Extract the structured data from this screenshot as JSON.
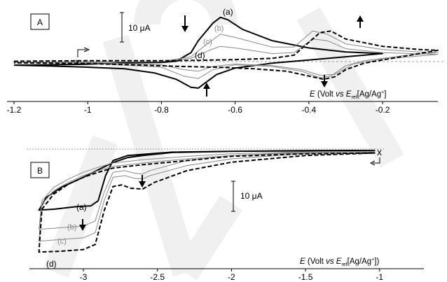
{
  "chart_data": [
    {
      "panel": "A",
      "type": "line",
      "xlabel": "E (Volt vs Eref[Ag/Ag+])",
      "xlim": [
        -1.2,
        -0.05
      ],
      "xticks": [
        "-1.2",
        "-1",
        "-0.8",
        "-0.6",
        "-0.4",
        "-0.2"
      ],
      "scale_bar": "10 µA",
      "start_marker": "x",
      "series": [
        {
          "label": "(a)",
          "style": "bold solid",
          "color": "#000000",
          "forward": [
            [
              -1.2,
              -0.22
            ],
            [
              -1.1,
              -0.2
            ],
            [
              -1.0,
              -0.16
            ],
            [
              -0.9,
              -0.08
            ],
            [
              -0.8,
              -0.05
            ],
            [
              -0.76,
              0.02
            ],
            [
              -0.72,
              0.55
            ],
            [
              -0.7,
              1.3
            ],
            [
              -0.66,
              2.4
            ],
            [
              -0.64,
              2.75
            ],
            [
              -0.62,
              2.6
            ],
            [
              -0.58,
              2.0
            ],
            [
              -0.5,
              1.3
            ],
            [
              -0.4,
              0.85
            ],
            [
              -0.3,
              0.6
            ],
            [
              -0.2,
              0.5
            ]
          ],
          "reverse": [
            [
              -0.2,
              0.5
            ],
            [
              -0.3,
              0.3
            ],
            [
              -0.4,
              0.1
            ],
            [
              -0.5,
              -0.1
            ],
            [
              -0.6,
              -0.4
            ],
            [
              -0.65,
              -0.8
            ],
            [
              -0.68,
              -1.3
            ],
            [
              -0.7,
              -1.65
            ],
            [
              -0.72,
              -1.6
            ],
            [
              -0.76,
              -1.1
            ],
            [
              -0.82,
              -0.7
            ],
            [
              -0.9,
              -0.45
            ],
            [
              -1.0,
              -0.35
            ],
            [
              -1.1,
              -0.28
            ],
            [
              -1.2,
              -0.22
            ]
          ]
        },
        {
          "label": "(b)",
          "style": "thin solid",
          "color": "#888888",
          "forward": [
            [
              -1.2,
              -0.05
            ],
            [
              -1.0,
              -0.03
            ],
            [
              -0.8,
              0.0
            ],
            [
              -0.72,
              0.3
            ],
            [
              -0.67,
              1.2
            ],
            [
              -0.64,
              1.7
            ],
            [
              -0.6,
              1.5
            ],
            [
              -0.5,
              0.9
            ],
            [
              -0.44,
              0.9
            ],
            [
              -0.39,
              1.9
            ],
            [
              -0.35,
              1.7
            ],
            [
              -0.3,
              1.1
            ],
            [
              -0.2,
              0.75
            ],
            [
              -0.1,
              0.6
            ],
            [
              -0.05,
              0.55
            ]
          ],
          "reverse": [
            [
              -0.05,
              0.55
            ],
            [
              -0.15,
              0.35
            ],
            [
              -0.25,
              0.05
            ],
            [
              -0.3,
              -0.25
            ],
            [
              -0.34,
              -0.9
            ],
            [
              -0.37,
              -1.0
            ],
            [
              -0.42,
              -0.6
            ],
            [
              -0.5,
              -0.3
            ],
            [
              -0.6,
              -0.2
            ],
            [
              -0.66,
              -0.5
            ],
            [
              -0.7,
              -1.05
            ],
            [
              -0.74,
              -0.9
            ],
            [
              -0.8,
              -0.35
            ],
            [
              -1.0,
              -0.1
            ],
            [
              -1.2,
              -0.05
            ]
          ]
        },
        {
          "label": "(c)",
          "style": "thin solid",
          "color": "#888888",
          "forward": [
            [
              -1.2,
              -0.03
            ],
            [
              -1.0,
              -0.02
            ],
            [
              -0.8,
              0.0
            ],
            [
              -0.72,
              0.2
            ],
            [
              -0.67,
              0.7
            ],
            [
              -0.64,
              0.95
            ],
            [
              -0.6,
              0.85
            ],
            [
              -0.5,
              0.5
            ],
            [
              -0.44,
              0.55
            ],
            [
              -0.39,
              1.4
            ],
            [
              -0.35,
              1.3
            ],
            [
              -0.3,
              0.8
            ],
            [
              -0.2,
              0.55
            ],
            [
              -0.05,
              0.45
            ]
          ],
          "reverse": [
            [
              -0.05,
              0.45
            ],
            [
              -0.2,
              0.15
            ],
            [
              -0.28,
              -0.15
            ],
            [
              -0.33,
              -0.8
            ],
            [
              -0.37,
              -0.85
            ],
            [
              -0.42,
              -0.5
            ],
            [
              -0.5,
              -0.25
            ],
            [
              -0.6,
              -0.15
            ],
            [
              -0.66,
              -0.3
            ],
            [
              -0.7,
              -0.6
            ],
            [
              -0.74,
              -0.5
            ],
            [
              -0.8,
              -0.2
            ],
            [
              -1.0,
              -0.05
            ],
            [
              -1.2,
              -0.03
            ]
          ]
        },
        {
          "label": "(d)",
          "style": "bold dashed",
          "color": "#000000",
          "forward": [
            [
              -1.2,
              0.02
            ],
            [
              -1.02,
              0.05
            ],
            [
              -0.9,
              0.05
            ],
            [
              -0.8,
              0.05
            ],
            [
              -0.7,
              0.08
            ],
            [
              -0.6,
              0.12
            ],
            [
              -0.5,
              0.2
            ],
            [
              -0.44,
              0.4
            ],
            [
              -0.4,
              1.2
            ],
            [
              -0.37,
              1.8
            ],
            [
              -0.34,
              1.9
            ],
            [
              -0.3,
              1.4
            ],
            [
              -0.2,
              0.95
            ],
            [
              -0.1,
              0.75
            ],
            [
              -0.05,
              0.7
            ]
          ],
          "reverse": [
            [
              -0.05,
              0.7
            ],
            [
              -0.15,
              0.3
            ],
            [
              -0.25,
              -0.1
            ],
            [
              -0.3,
              -0.5
            ],
            [
              -0.33,
              -0.95
            ],
            [
              -0.36,
              -1.1
            ],
            [
              -0.4,
              -0.9
            ],
            [
              -0.46,
              -0.6
            ],
            [
              -0.55,
              -0.45
            ],
            [
              -0.65,
              -0.35
            ],
            [
              -0.75,
              -0.3
            ],
            [
              -0.85,
              -0.22
            ],
            [
              -1.0,
              -0.12
            ],
            [
              -1.2,
              -0.08
            ]
          ]
        }
      ]
    },
    {
      "panel": "B",
      "type": "line",
      "xlabel": "E (Volt vs Eref[Ag/Ag+])",
      "xlim": [
        -3.35,
        -0.98
      ],
      "xticks": [
        "-3",
        "-2.5",
        "-2",
        "-1.5",
        "-1"
      ],
      "scale_bar": "10 µA",
      "start_marker": "x",
      "series": [
        {
          "label": "(a)",
          "style": "bold solid",
          "color": "#000000",
          "forward": [
            [
              -1.03,
              0.0
            ],
            [
              -1.5,
              -0.02
            ],
            [
              -2.0,
              -0.05
            ],
            [
              -2.4,
              -0.1
            ],
            [
              -2.7,
              -0.3
            ],
            [
              -2.8,
              -0.6
            ],
            [
              -2.85,
              -1.5
            ],
            [
              -2.9,
              -3.0
            ],
            [
              -2.95,
              -3.3
            ],
            [
              -3.05,
              -3.35
            ],
            [
              -3.2,
              -3.5
            ],
            [
              -3.3,
              -3.55
            ]
          ],
          "reverse": [
            [
              -3.3,
              -3.55
            ],
            [
              -3.25,
              -2.8
            ],
            [
              -3.15,
              -2.2
            ],
            [
              -3.0,
              -1.6
            ],
            [
              -2.9,
              -1.15
            ],
            [
              -2.8,
              -0.72
            ],
            [
              -2.7,
              -0.42
            ],
            [
              -2.6,
              -0.3
            ],
            [
              -2.4,
              -0.12
            ],
            [
              -2.0,
              -0.05
            ],
            [
              -1.5,
              -0.01
            ],
            [
              -1.03,
              0.0
            ]
          ]
        },
        {
          "label": "(b)",
          "style": "thin solid",
          "color": "#888888",
          "forward": [
            [
              -1.03,
              -0.05
            ],
            [
              -1.5,
              -0.1
            ],
            [
              -2.0,
              -0.3
            ],
            [
              -2.3,
              -0.6
            ],
            [
              -2.55,
              -1.2
            ],
            [
              -2.6,
              -1.4
            ],
            [
              -2.66,
              -1.35
            ],
            [
              -2.72,
              -1.2
            ],
            [
              -2.8,
              -1.3
            ],
            [
              -2.86,
              -2.5
            ],
            [
              -2.92,
              -4.2
            ],
            [
              -3.0,
              -4.5
            ],
            [
              -3.15,
              -4.6
            ],
            [
              -3.3,
              -4.7
            ]
          ],
          "reverse": [
            [
              -3.3,
              -4.7
            ],
            [
              -3.28,
              -3.0
            ],
            [
              -3.2,
              -2.2
            ],
            [
              -3.1,
              -1.7
            ],
            [
              -3.0,
              -1.3
            ],
            [
              -2.9,
              -1.0
            ],
            [
              -2.8,
              -0.75
            ],
            [
              -2.6,
              -0.55
            ],
            [
              -2.3,
              -0.35
            ],
            [
              -2.0,
              -0.2
            ],
            [
              -1.5,
              -0.08
            ],
            [
              -1.03,
              -0.05
            ]
          ]
        },
        {
          "label": "(c)",
          "style": "thin solid",
          "color": "#888888",
          "forward": [
            [
              -1.03,
              -0.1
            ],
            [
              -1.5,
              -0.18
            ],
            [
              -2.0,
              -0.5
            ],
            [
              -2.3,
              -0.9
            ],
            [
              -2.55,
              -1.5
            ],
            [
              -2.6,
              -1.7
            ],
            [
              -2.66,
              -1.65
            ],
            [
              -2.72,
              -1.5
            ],
            [
              -2.8,
              -1.6
            ],
            [
              -2.86,
              -3.0
            ],
            [
              -2.92,
              -4.9
            ],
            [
              -3.0,
              -5.2
            ],
            [
              -3.15,
              -5.3
            ],
            [
              -3.3,
              -5.4
            ]
          ],
          "reverse": [
            [
              -3.3,
              -5.4
            ],
            [
              -3.28,
              -3.2
            ],
            [
              -3.2,
              -2.4
            ],
            [
              -3.1,
              -1.9
            ],
            [
              -3.0,
              -1.5
            ],
            [
              -2.9,
              -1.2
            ],
            [
              -2.8,
              -0.95
            ],
            [
              -2.6,
              -0.75
            ],
            [
              -2.3,
              -0.5
            ],
            [
              -2.0,
              -0.3
            ],
            [
              -1.5,
              -0.15
            ],
            [
              -1.03,
              -0.1
            ]
          ]
        },
        {
          "label": "(d)",
          "style": "bold dashed",
          "color": "#000000",
          "forward": [
            [
              -1.03,
              -0.15
            ],
            [
              -1.5,
              -0.3
            ],
            [
              -2.0,
              -0.7
            ],
            [
              -2.3,
              -1.2
            ],
            [
              -2.52,
              -1.9
            ],
            [
              -2.6,
              -2.3
            ],
            [
              -2.68,
              -2.25
            ],
            [
              -2.74,
              -2.05
            ],
            [
              -2.8,
              -2.15
            ],
            [
              -2.86,
              -3.6
            ],
            [
              -2.92,
              -5.6
            ],
            [
              -3.0,
              -5.9
            ],
            [
              -3.15,
              -6.0
            ],
            [
              -3.3,
              -6.05
            ]
          ],
          "reverse": [
            [
              -3.3,
              -6.05
            ],
            [
              -3.28,
              -3.5
            ],
            [
              -3.2,
              -2.6
            ],
            [
              -3.1,
              -2.0
            ],
            [
              -3.0,
              -1.6
            ],
            [
              -2.9,
              -1.3
            ],
            [
              -2.8,
              -1.05
            ],
            [
              -2.6,
              -0.85
            ],
            [
              -2.3,
              -0.6
            ],
            [
              -2.0,
              -0.35
            ],
            [
              -1.5,
              -0.2
            ],
            [
              -1.03,
              -0.15
            ]
          ]
        }
      ]
    }
  ],
  "panels": {
    "A": {
      "label": "A",
      "scale_bar": "10 μA",
      "curve_labels": [
        "(a)",
        "(b)",
        "(c)",
        "(d)"
      ],
      "xlabel": {
        "E": "E",
        "mid": " (Volt ",
        "vs": "vs",
        "E2": " E",
        "sub": "ref",
        "tail": "[Ag/Ag",
        "sup": "+",
        "end": "]"
      },
      "start_marker": "x"
    },
    "B": {
      "label": "B",
      "scale_bar": "10 μA",
      "curve_labels": [
        "(a)",
        "(b)",
        "(c)",
        "(d)"
      ],
      "xlabel": {
        "E": "E",
        "mid": " (Volt ",
        "vs": "vs",
        "E2": " E",
        "sub": "ref",
        "tail": "[Ag/Ag",
        "sup": "+",
        "end": "])"
      },
      "start_marker": "x"
    }
  },
  "colors": {
    "dark": "#000000",
    "grey": "#888888",
    "watermark": "#ececec",
    "axis": "#000000"
  }
}
